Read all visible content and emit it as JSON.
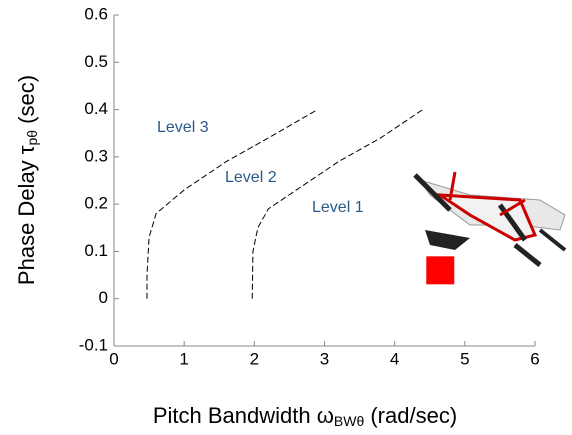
{
  "chart_data": {
    "type": "line",
    "xlabel": {
      "main": "Pitch Bandwidth ω",
      "sub": "BWθ",
      "tail": " (rad/sec)"
    },
    "ylabel": {
      "main": "Phase Delay  τ",
      "sub": "pθ",
      "tail": " (sec)"
    },
    "xlim": [
      0,
      6
    ],
    "xticks": [
      0,
      1,
      2,
      3,
      4,
      5,
      6
    ],
    "ylim": [
      -0.1,
      0.6
    ],
    "yticks": [
      -0.1,
      0,
      0.1,
      0.2,
      0.3,
      0.4,
      0.5,
      0.6
    ],
    "series": [
      {
        "color": "#000000",
        "dashed": true,
        "x": [
          0.47,
          0.47,
          0.5,
          0.6,
          1.0,
          1.6,
          2.2,
          2.9
        ],
        "values": [
          0,
          0.05,
          0.13,
          0.18,
          0.23,
          0.29,
          0.34,
          0.4
        ]
      },
      {
        "color": "#000000",
        "dashed": true,
        "x": [
          1.97,
          1.98,
          2.05,
          2.2,
          2.6,
          3.2,
          3.8,
          4.4
        ],
        "values": [
          0,
          0.1,
          0.15,
          0.19,
          0.23,
          0.29,
          0.34,
          0.4
        ]
      }
    ],
    "markers": [
      {
        "x": 4.65,
        "y": 0.06,
        "color": "#ff0000"
      }
    ],
    "annotations": [
      "Level 3",
      "Level 2",
      "Level 1"
    ]
  }
}
